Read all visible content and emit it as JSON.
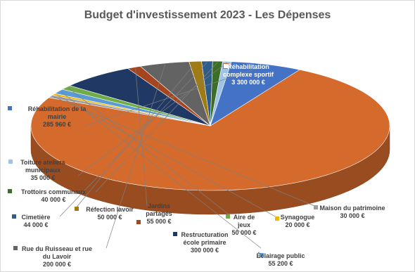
{
  "chart_data": {
    "type": "pie",
    "title": "Budget d'investissement 2023 - Les Dépenses",
    "slices": [
      {
        "label": "Réhabilitation complexe sportif",
        "value_label": "3 300 000 €",
        "value": 3300000,
        "color": "#D46A2C"
      },
      {
        "label": "Maison du patrimoine",
        "value_label": "30 000 €",
        "value": 30000,
        "color": "#9E9E9E"
      },
      {
        "label": "Synagogue",
        "value_label": "20 000 €",
        "value": 20000,
        "color": "#F2B600"
      },
      {
        "label": "Éclairage public",
        "value_label": "55 200 €",
        "value": 55200,
        "color": "#5B9BD5"
      },
      {
        "label": "Aire de jeux",
        "value_label": "50 000 €",
        "value": 50000,
        "color": "#70AD47"
      },
      {
        "label": "Restructuration école primaire",
        "value_label": "300 000 €",
        "value": 300000,
        "color": "#1F3864"
      },
      {
        "label": "Jardins partagés",
        "value_label": "55 000 €",
        "value": 55000,
        "color": "#A5451D"
      },
      {
        "label": "Rue du Ruisseau et rue du Lavoir",
        "value_label": "200 000 €",
        "value": 200000,
        "color": "#636363"
      },
      {
        "label": "Réfection lavoir",
        "value_label": "50 000 €",
        "value": 50000,
        "color": "#A07A12"
      },
      {
        "label": "Cimetière",
        "value_label": "44 000 €",
        "value": 44000,
        "color": "#2E5C8A"
      },
      {
        "label": "Trottoirs communaux",
        "value_label": "40 000 €",
        "value": 40000,
        "color": "#3C6E28"
      },
      {
        "label": "Toiture ateliers municipaux",
        "value_label": "35 000 €",
        "value": 35000,
        "color": "#9DC3E6"
      },
      {
        "label": "Réhabilitation de la mairie",
        "value_label": "285 960 €",
        "value": 285960,
        "color": "#4472C4"
      }
    ]
  }
}
